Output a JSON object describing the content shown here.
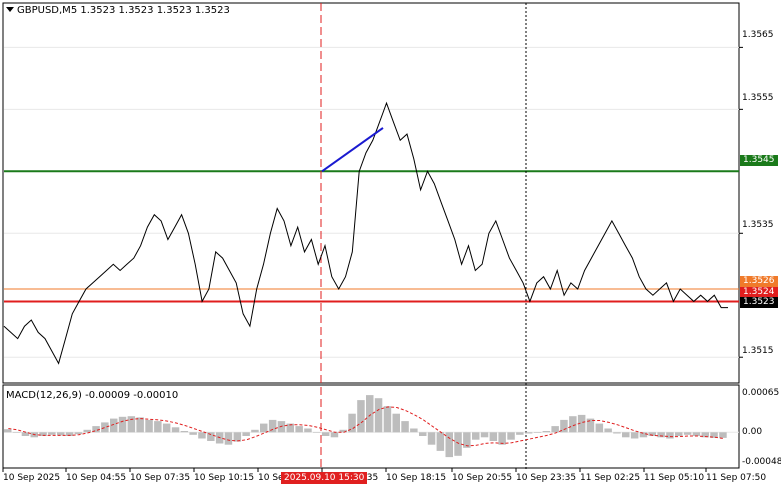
{
  "header": {
    "symbol_line": "GBPUSD,M5  1.3523 1.3523 1.3523 1.3523",
    "macd_line": "MACD(12,26,9) -0.00009 -0.00010"
  },
  "price_axis": {
    "labels": [
      "1.3565",
      "1.3555",
      "1.3535",
      "1.3515"
    ],
    "tags": [
      {
        "text": "1.3545",
        "color": "#1a7a1a"
      },
      {
        "text": "1.3526",
        "color": "#f07a2a"
      },
      {
        "text": "1.3524",
        "color": "#e01e1e"
      },
      {
        "text": "1.3523",
        "color": "#000000"
      }
    ]
  },
  "macd_axis": {
    "labels": [
      "0.00065",
      "0.00",
      "-0.00048"
    ]
  },
  "time_axis": {
    "labels": [
      "10 Sep 2025",
      "10 Sep 04:55",
      "10 Sep 07:35",
      "10 Sep 10:15",
      "10 Sep 12",
      "3:35",
      "10 Sep 18:15",
      "10 Sep 20:55",
      "10 Sep 23:35",
      "11 Sep 02:25",
      "11 Sep 05:10",
      "11 Sep 07:50"
    ],
    "cursor_label": "2025.09.10 15:30"
  },
  "chart_data": {
    "type": "line",
    "symbol": "GBPUSD",
    "timeframe": "M5",
    "ylim": [
      1.3511,
      1.3572
    ],
    "horizontal_levels": [
      {
        "value": 1.3545,
        "color": "#1a7a1a"
      },
      {
        "value": 1.3526,
        "color": "#f07a2a"
      },
      {
        "value": 1.3524,
        "color": "#e01e1e"
      }
    ],
    "price": [
      1.352,
      1.3519,
      1.3518,
      1.352,
      1.3521,
      1.3519,
      1.3518,
      1.3516,
      1.3514,
      1.3518,
      1.3522,
      1.3524,
      1.3526,
      1.3527,
      1.3528,
      1.3529,
      1.353,
      1.3529,
      1.353,
      1.3531,
      1.3533,
      1.3536,
      1.3538,
      1.3537,
      1.3534,
      1.3536,
      1.3538,
      1.3535,
      1.353,
      1.3524,
      1.3526,
      1.3532,
      1.3531,
      1.3529,
      1.3527,
      1.3522,
      1.352,
      1.3526,
      1.353,
      1.3535,
      1.3539,
      1.3537,
      1.3533,
      1.3536,
      1.3532,
      1.3534,
      1.353,
      1.3533,
      1.3528,
      1.3526,
      1.3528,
      1.3532,
      1.3545,
      1.3548,
      1.355,
      1.3553,
      1.3556,
      1.3553,
      1.355,
      1.3551,
      1.3547,
      1.3542,
      1.3545,
      1.3543,
      1.354,
      1.3537,
      1.3534,
      1.353,
      1.3533,
      1.3529,
      1.353,
      1.3535,
      1.3537,
      1.3534,
      1.3531,
      1.3529,
      1.3527,
      1.3524,
      1.3527,
      1.3528,
      1.3526,
      1.3529,
      1.3525,
      1.3527,
      1.3526,
      1.3529,
      1.3531,
      1.3533,
      1.3535,
      1.3537,
      1.3535,
      1.3533,
      1.3531,
      1.3528,
      1.3526,
      1.3525,
      1.3526,
      1.3527,
      1.3524,
      1.3526,
      1.3525,
      1.3524,
      1.3525,
      1.3524,
      1.3525,
      1.3523,
      1.3523
    ],
    "price_x_range": [
      "10 Sep 2025",
      "11 Sep 07:50"
    ],
    "drawn_trendline": {
      "from": 1.3545,
      "to": 1.3552,
      "color": "#1a1ad0"
    },
    "cursor_time": "2025.09.10 15:30",
    "dotted_vline_time": "10 Sep 23:35",
    "macd": {
      "ylim": [
        -0.00048,
        0.00065
      ],
      "histogram": [
        5e-05,
        0.0,
        -6e-05,
        -8e-05,
        -6e-05,
        -4e-05,
        -5e-05,
        -6e-05,
        -3e-05,
        4e-05,
        0.0001,
        0.00016,
        0.00022,
        0.00025,
        0.00026,
        0.00024,
        0.0002,
        0.00018,
        0.00014,
        8e-05,
        2e-05,
        -4e-05,
        -0.0001,
        -0.00014,
        -0.00018,
        -0.0002,
        -0.00015,
        -6e-05,
        4e-05,
        0.00014,
        0.0002,
        0.00018,
        0.00014,
        0.0001,
        6e-05,
        0.0,
        -6e-05,
        -8e-05,
        4e-05,
        0.0003,
        0.00052,
        0.0006,
        0.00055,
        0.00042,
        0.0003,
        0.00018,
        6e-05,
        -6e-05,
        -0.0002,
        -0.0003,
        -0.0004,
        -0.00038,
        -0.00025,
        -0.00012,
        -8e-05,
        -0.00014,
        -0.0002,
        -0.00012,
        -4e-05,
        -2e-05,
        -1e-05,
        2e-05,
        0.0001,
        0.0002,
        0.00026,
        0.00028,
        0.00022,
        0.00014,
        6e-05,
        -2e-05,
        -8e-05,
        -0.0001,
        -8e-05,
        -6e-05,
        -8e-05,
        -0.0001,
        -6e-05,
        -4e-05,
        -6e-05,
        -8e-05,
        -9e-05,
        -9e-05
      ],
      "signal": [
        6e-05,
        4e-05,
        0.0,
        -4e-05,
        -5e-05,
        -5e-05,
        -5e-05,
        -5e-05,
        -4e-05,
        -1e-05,
        3e-05,
        8e-05,
        0.00013,
        0.00018,
        0.00021,
        0.00022,
        0.00021,
        0.0002,
        0.00018,
        0.00015,
        0.00011,
        6e-05,
        1e-05,
        -4e-05,
        -9e-05,
        -0.00013,
        -0.00014,
        -0.00012,
        -7e-05,
        -1e-05,
        5e-05,
        0.0001,
        0.00012,
        0.00012,
        0.00011,
        8e-05,
        4e-05,
        0.0,
        0.0,
        6e-05,
        0.00016,
        0.00028,
        0.00037,
        0.00041,
        0.0004,
        0.00035,
        0.00028,
        0.0002,
        0.0001,
        0.0,
        -0.0001,
        -0.00018,
        -0.00022,
        -0.00021,
        -0.00018,
        -0.00017,
        -0.00018,
        -0.00017,
        -0.00014,
        -0.00011,
        -8e-05,
        -5e-05,
        -1e-05,
        5e-05,
        0.00011,
        0.00016,
        0.00019,
        0.00019,
        0.00016,
        0.00012,
        7e-05,
        2e-05,
        -2e-05,
        -5e-05,
        -6e-05,
        -7e-05,
        -7e-05,
        -6e-05,
        -6e-05,
        -7e-05,
        -8e-05,
        -0.0001
      ]
    }
  }
}
